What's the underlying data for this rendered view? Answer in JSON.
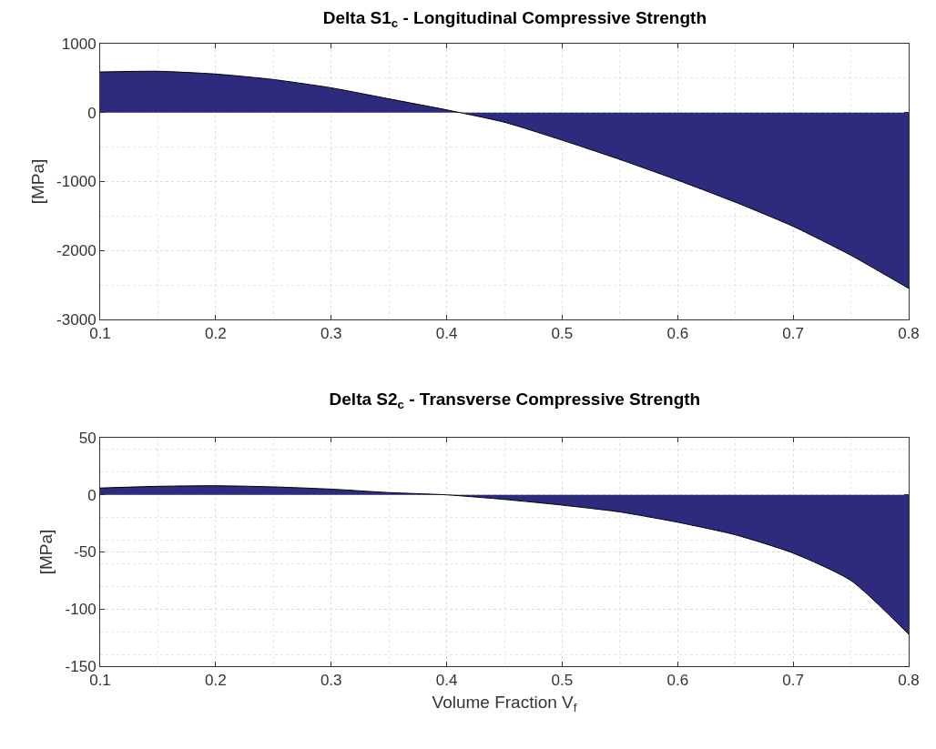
{
  "chart_data": [
    {
      "type": "area",
      "title": "Delta S1$_{c}$ - Longitudinal Compressive Strength",
      "ylabel": "[MPa]",
      "x": [
        0.1,
        0.15,
        0.2,
        0.25,
        0.3,
        0.35,
        0.4,
        0.45,
        0.5,
        0.55,
        0.6,
        0.65,
        0.7,
        0.75,
        0.8
      ],
      "series": [
        {
          "color": "#2e2a7e",
          "values": [
            590,
            600,
            560,
            480,
            360,
            200,
            40,
            -140,
            -400,
            -680,
            -980,
            -1300,
            -1650,
            -2070,
            -2550
          ]
        }
      ],
      "xlim": [
        0.1,
        0.8
      ],
      "xticks": [
        0.1,
        0.2,
        0.3,
        0.4,
        0.5,
        0.6,
        0.7,
        0.8
      ],
      "ylim": [
        -3000,
        1000
      ],
      "yticks": [
        -3000,
        -2000,
        -1000,
        0,
        1000
      ],
      "grid": true
    },
    {
      "type": "area",
      "title": "Delta S2$_{c}$ - Transverse Compressive Strength",
      "xlabel": "Volume Fraction V$_{f}$",
      "ylabel": "[MPa]",
      "x": [
        0.1,
        0.15,
        0.2,
        0.25,
        0.3,
        0.35,
        0.4,
        0.45,
        0.5,
        0.55,
        0.6,
        0.65,
        0.7,
        0.75,
        0.8
      ],
      "series": [
        {
          "color": "#2e2a7e",
          "values": [
            6,
            7.5,
            8,
            7,
            5,
            2,
            0,
            -4,
            -9,
            -15,
            -24,
            -35,
            -51,
            -75,
            -122
          ]
        }
      ],
      "xlim": [
        0.1,
        0.8
      ],
      "xticks": [
        0.1,
        0.2,
        0.3,
        0.4,
        0.5,
        0.6,
        0.7,
        0.8
      ],
      "ylim": [
        -150,
        50
      ],
      "yticks": [
        -150,
        -100,
        -50,
        0,
        50
      ],
      "grid": true
    }
  ]
}
